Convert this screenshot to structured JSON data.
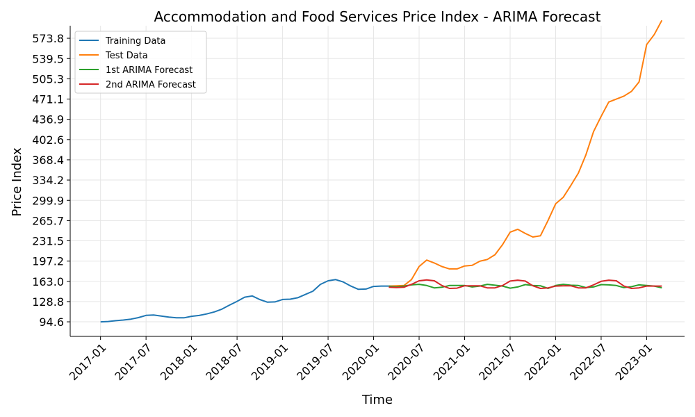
{
  "chart_data": {
    "type": "line",
    "title": "Accommodation and Food Services Price Index - ARIMA Forecast",
    "xlabel": "Time",
    "ylabel": "Price Index",
    "x_ticks": [
      "2017-01",
      "2017-07",
      "2018-01",
      "2018-07",
      "2019-01",
      "2019-07",
      "2020-01",
      "2020-07",
      "2021-01",
      "2021-07",
      "2022-01",
      "2022-07",
      "2023-01"
    ],
    "y_ticks": [
      94.6,
      128.8,
      163.0,
      197.2,
      231.5,
      265.7,
      299.9,
      334.2,
      368.4,
      402.6,
      436.9,
      471.1,
      505.3,
      539.5,
      573.8
    ],
    "y_tick_labels": [
      "94.6",
      "128.8",
      "163.0",
      "197.2",
      "231.5",
      "265.7",
      "299.9",
      "334.2",
      "368.4",
      "402.6",
      "436.9",
      "471.1",
      "505.3",
      "539.5",
      "573.8"
    ],
    "ylim": [
      70,
      595
    ],
    "xlim": [
      "2016-09",
      "2023-06"
    ],
    "grid": true,
    "legend_position": "upper-left",
    "series": [
      {
        "name": "Training Data",
        "color": "#1f77b4",
        "x": [
          "2017-01",
          "2017-02",
          "2017-03",
          "2017-04",
          "2017-05",
          "2017-06",
          "2017-07",
          "2017-08",
          "2017-09",
          "2017-10",
          "2017-11",
          "2017-12",
          "2018-01",
          "2018-02",
          "2018-03",
          "2018-04",
          "2018-05",
          "2018-06",
          "2018-07",
          "2018-08",
          "2018-09",
          "2018-10",
          "2018-11",
          "2018-12",
          "2019-01",
          "2019-02",
          "2019-03",
          "2019-04",
          "2019-05",
          "2019-06",
          "2019-07",
          "2019-08",
          "2019-09",
          "2019-10",
          "2019-11",
          "2019-12",
          "2020-01",
          "2020-02",
          "2020-03"
        ],
        "values": [
          94.6,
          95.1,
          96.5,
          97.6,
          99.1,
          101.7,
          105.5,
          106.0,
          104.4,
          102.7,
          101.4,
          101.4,
          103.9,
          105.4,
          107.9,
          111.3,
          116.0,
          122.9,
          129.2,
          136.2,
          138.3,
          132.3,
          127.8,
          128.2,
          132.4,
          132.8,
          135.3,
          140.8,
          146.3,
          158.0,
          164.0,
          166.0,
          162.0,
          155.0,
          149.5,
          150.0,
          154.5,
          155.0,
          155.0
        ]
      },
      {
        "name": "Test Data",
        "color": "#ff7f0e",
        "x": [
          "2020-03",
          "2020-04",
          "2020-05",
          "2020-06",
          "2020-07",
          "2020-08",
          "2020-09",
          "2020-10",
          "2020-11",
          "2020-12",
          "2021-01",
          "2021-02",
          "2021-03",
          "2021-04",
          "2021-05",
          "2021-06",
          "2021-07",
          "2021-08",
          "2021-09",
          "2021-10",
          "2021-11",
          "2021-12",
          "2022-01",
          "2022-02",
          "2022-03",
          "2022-04",
          "2022-05",
          "2022-06",
          "2022-07",
          "2022-08",
          "2022-09",
          "2022-10",
          "2022-11",
          "2022-12",
          "2023-01",
          "2023-02",
          "2023-03"
        ],
        "values": [
          155.0,
          155.5,
          156.0,
          166.0,
          188.0,
          199.0,
          194.0,
          188.0,
          184.0,
          184.0,
          189.0,
          190.0,
          197.0,
          200.0,
          208.0,
          225.0,
          246.0,
          251.0,
          244.0,
          238.0,
          240.0,
          266.0,
          294.0,
          305.0,
          325.0,
          346.0,
          377.0,
          416.0,
          442.0,
          466.0,
          471.0,
          476.0,
          484.0,
          500.0,
          563.0,
          580.0,
          604.0
        ]
      },
      {
        "name": "1st ARIMA Forecast",
        "color": "#2ca02c",
        "x": [
          "2020-03",
          "2020-04",
          "2020-05",
          "2020-06",
          "2020-07",
          "2020-08",
          "2020-09",
          "2020-10",
          "2020-11",
          "2020-12",
          "2021-01",
          "2021-02",
          "2021-03",
          "2021-04",
          "2021-05",
          "2021-06",
          "2021-07",
          "2021-08",
          "2021-09",
          "2021-10",
          "2021-11",
          "2021-12",
          "2022-01",
          "2022-02",
          "2022-03",
          "2022-04",
          "2022-05",
          "2022-06",
          "2022-07",
          "2022-08",
          "2022-09",
          "2022-10",
          "2022-11",
          "2022-12",
          "2023-01",
          "2023-02",
          "2023-03"
        ],
        "values": [
          155.0,
          153.5,
          155.0,
          157.0,
          158.0,
          156.0,
          152.0,
          153.0,
          156.0,
          156.0,
          156.0,
          153.5,
          155.0,
          158.0,
          156.5,
          155.0,
          151.5,
          153.5,
          157.5,
          156.0,
          155.5,
          151.0,
          156.0,
          158.0,
          156.5,
          156.0,
          152.5,
          153.5,
          157.5,
          157.0,
          156.0,
          152.5,
          154.0,
          157.0,
          156.0,
          155.0,
          152.0
        ]
      },
      {
        "name": "2nd ARIMA Forecast",
        "color": "#d62728",
        "x": [
          "2020-03",
          "2020-04",
          "2020-05",
          "2020-06",
          "2020-07",
          "2020-08",
          "2020-09",
          "2020-10",
          "2020-11",
          "2020-12",
          "2021-01",
          "2021-02",
          "2021-03",
          "2021-04",
          "2021-05",
          "2021-06",
          "2021-07",
          "2021-08",
          "2021-09",
          "2021-10",
          "2021-11",
          "2021-12",
          "2022-01",
          "2022-02",
          "2022-03",
          "2022-04",
          "2022-05",
          "2022-06",
          "2022-07",
          "2022-08",
          "2022-09",
          "2022-10",
          "2022-11",
          "2022-12",
          "2023-01",
          "2023-02",
          "2023-03"
        ],
        "values": [
          153.0,
          152.5,
          153.0,
          158.0,
          164.0,
          165.5,
          164.0,
          156.0,
          151.0,
          151.5,
          155.5,
          155.5,
          155.5,
          152.0,
          152.0,
          156.0,
          163.5,
          165.0,
          163.5,
          155.5,
          151.0,
          152.0,
          155.0,
          155.5,
          155.5,
          152.0,
          152.0,
          157.0,
          163.0,
          165.0,
          164.0,
          155.0,
          151.0,
          152.0,
          155.0,
          155.0,
          155.0
        ]
      }
    ]
  }
}
